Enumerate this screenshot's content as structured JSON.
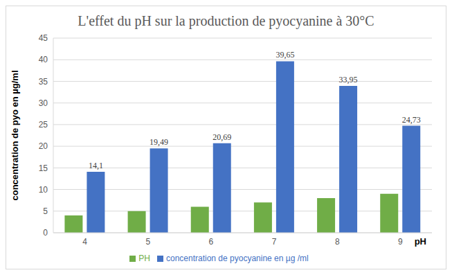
{
  "chart_data": {
    "type": "bar",
    "title": "L'effet du pH sur la production de pyocyanine à 30°C",
    "x_label": "pH",
    "y_label": "concentration de pyo en µg/ml",
    "categories": [
      "4",
      "5",
      "6",
      "7",
      "8",
      "9"
    ],
    "series": [
      {
        "name": "PH",
        "color": "#70ad47",
        "values": [
          4,
          5,
          6,
          7,
          8,
          9
        ]
      },
      {
        "name": "concentration de pyocyanine en µg /ml",
        "color": "#4472c4",
        "values": [
          14.1,
          19.49,
          20.69,
          39.65,
          33.95,
          24.73
        ],
        "data_labels": true,
        "value_labels": [
          "14,1",
          "19,49",
          "20,69",
          "39,65",
          "33,95",
          "24,73"
        ]
      }
    ],
    "ylim": [
      0,
      45
    ],
    "yticks": [
      0,
      5,
      10,
      15,
      20,
      25,
      30,
      35,
      40,
      45
    ],
    "grid": true,
    "legend": "bottom"
  }
}
